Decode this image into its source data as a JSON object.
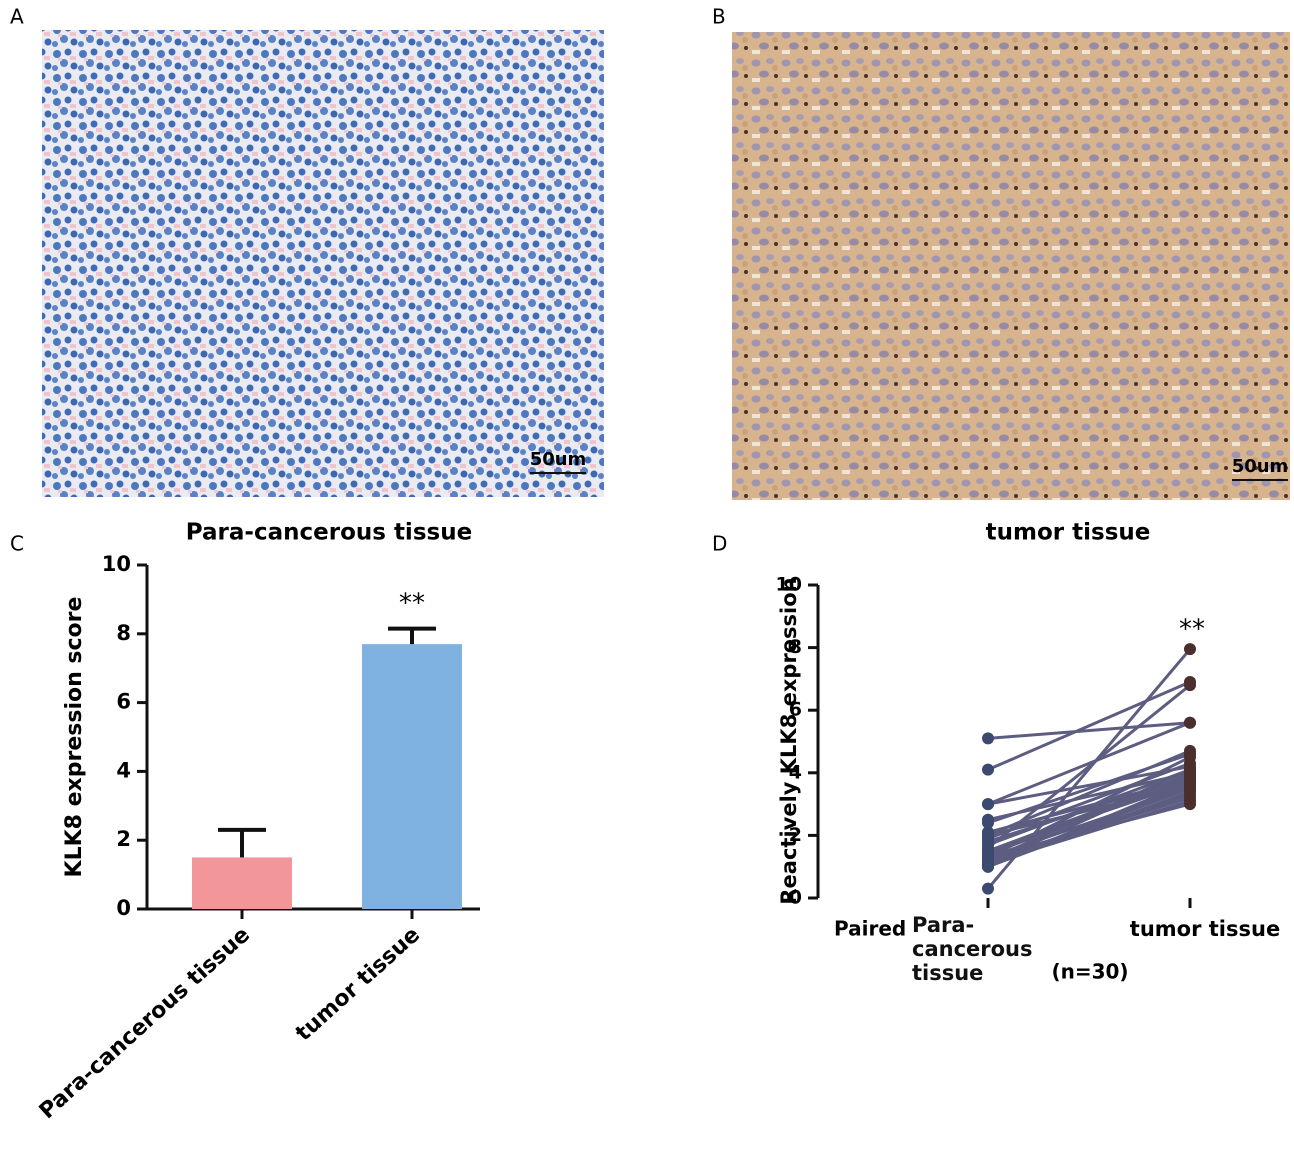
{
  "images": [
    {
      "label": "A",
      "caption": "Para-cancerous tissue",
      "scale_bar": "50um"
    },
    {
      "label": "B",
      "caption": "tumor tissue",
      "scale_bar": "50um"
    }
  ],
  "chart_data": [
    {
      "type": "bar",
      "label": "C",
      "ylabel": "KLK8 expression score",
      "categories": [
        "Para-cancerous tissue",
        "tumor tissue"
      ],
      "values": [
        1.5,
        7.7
      ],
      "errors": [
        0.8,
        0.45
      ],
      "colors": [
        "#f2969a",
        "#7fb2e0"
      ],
      "annotation": "**",
      "ylim": [
        0,
        10
      ],
      "yticks": [
        0,
        2,
        4,
        6,
        8,
        10
      ]
    },
    {
      "type": "paired",
      "label": "D",
      "ylabel": "Reactively  KLK8 expression",
      "x_prefix_label": "Paired",
      "n_label": "(n=30)",
      "annotation": "**",
      "categories": [
        "Para-cancerous tissue",
        "tumor tissue"
      ],
      "line_color": "#5d5d82",
      "point_colors": [
        "#3b4a6e",
        "#4b2e2e"
      ],
      "ylim": [
        0,
        10
      ],
      "yticks": [
        0,
        2,
        4,
        6,
        8,
        10
      ],
      "series": [
        {
          "values": [
            5.1,
            5.6
          ]
        },
        {
          "values": [
            4.1,
            6.9
          ]
        },
        {
          "values": [
            3.0,
            5.6
          ]
        },
        {
          "values": [
            3.0,
            4.2
          ]
        },
        {
          "values": [
            2.5,
            4.0
          ]
        },
        {
          "values": [
            2.1,
            3.8
          ]
        },
        {
          "values": [
            2.0,
            4.7
          ]
        },
        {
          "values": [
            1.8,
            3.9
          ]
        },
        {
          "values": [
            1.5,
            3.7
          ]
        },
        {
          "values": [
            1.3,
            3.5
          ]
        },
        {
          "values": [
            1.2,
            3.3
          ]
        },
        {
          "values": [
            1.1,
            3.1
          ]
        },
        {
          "values": [
            1.0,
            3.6
          ]
        },
        {
          "values": [
            0.3,
            7.95
          ]
        },
        {
          "values": [
            1.2,
            4.1
          ]
        },
        {
          "values": [
            1.4,
            3.8
          ]
        },
        {
          "values": [
            1.0,
            3.4
          ]
        },
        {
          "values": [
            1.1,
            4.0
          ]
        },
        {
          "values": [
            1.3,
            4.5
          ]
        },
        {
          "values": [
            1.5,
            3.9
          ]
        },
        {
          "values": [
            1.9,
            4.3
          ]
        },
        {
          "values": [
            1.2,
            3.2
          ]
        },
        {
          "values": [
            1.0,
            3.7
          ]
        },
        {
          "values": [
            1.6,
            6.8
          ]
        },
        {
          "values": [
            2.0,
            3.6
          ]
        },
        {
          "values": [
            1.3,
            3.0
          ]
        },
        {
          "values": [
            1.1,
            3.5
          ]
        },
        {
          "values": [
            1.7,
            4.1
          ]
        },
        {
          "values": [
            2.4,
            4.6
          ]
        },
        {
          "values": [
            1.4,
            3.8
          ]
        }
      ]
    }
  ]
}
